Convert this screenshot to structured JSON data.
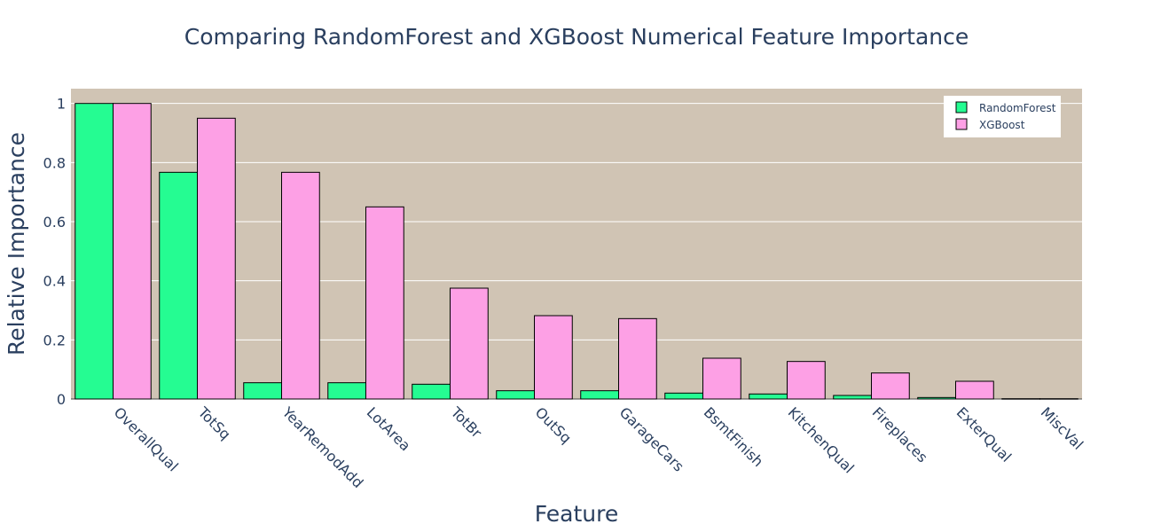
{
  "chart_data": {
    "type": "bar",
    "title": "Comparing RandomForest and XGBoost Numerical Feature Importance",
    "xlabel": "Feature",
    "ylabel": "Relative Importance",
    "categories": [
      "OverallQual",
      "TotSq",
      "YearRemodAdd",
      "LotArea",
      "TotBr",
      "OutSq",
      "GarageCars",
      "BsmtFinish",
      "KitchenQual",
      "Fireplaces",
      "ExterQual",
      "MiscVal"
    ],
    "series": [
      {
        "name": "RandomForest",
        "color": "#25fc92",
        "values": [
          1.0,
          0.767,
          0.055,
          0.055,
          0.05,
          0.028,
          0.028,
          0.02,
          0.017,
          0.012,
          0.005,
          0.001
        ]
      },
      {
        "name": "XGBoost",
        "color": "#fda0e5",
        "values": [
          1.0,
          0.95,
          0.767,
          0.65,
          0.375,
          0.282,
          0.272,
          0.138,
          0.127,
          0.088,
          0.06,
          0.001
        ]
      }
    ],
    "ylim": [
      0,
      1.05
    ],
    "yticks": [
      "0",
      "0.2",
      "0.4",
      "0.6",
      "0.8",
      "1"
    ],
    "ytick_values": [
      0,
      0.2,
      0.4,
      0.6,
      0.8,
      1
    ],
    "plot_background": "#d0c4b4",
    "grid": true,
    "legend_position": "top-right"
  }
}
